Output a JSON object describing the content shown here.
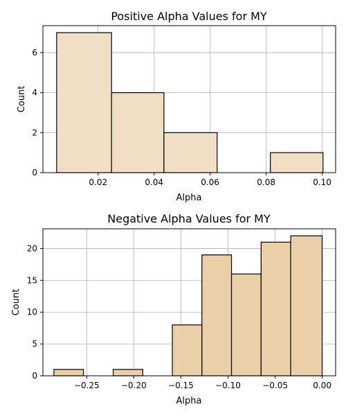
{
  "chart_data": [
    {
      "type": "bar",
      "title": "Positive Alpha Values for MY",
      "xlabel": "Alpha",
      "ylabel": "Count",
      "xlim": [
        0.0003,
        0.1048
      ],
      "ylim": [
        0,
        7.35
      ],
      "xticks": [
        0.02,
        0.04,
        0.06,
        0.08,
        0.1
      ],
      "xtick_labels": [
        "0.02",
        "0.04",
        "0.06",
        "0.08",
        "0.10"
      ],
      "yticks": [
        0,
        2,
        4,
        6
      ],
      "ytick_labels": [
        "0",
        "2",
        "4",
        "6"
      ],
      "grid": true,
      "bar_color": "#f0dfc4",
      "bins": [
        {
          "x0": 0.0052,
          "x1": 0.0248,
          "count": 7
        },
        {
          "x0": 0.0248,
          "x1": 0.0435,
          "count": 4
        },
        {
          "x0": 0.0435,
          "x1": 0.0625,
          "count": 2
        },
        {
          "x0": 0.0625,
          "x1": 0.0815,
          "count": 0
        },
        {
          "x0": 0.0815,
          "x1": 0.1003,
          "count": 1
        }
      ]
    },
    {
      "type": "bar",
      "title": "Negative Alpha Values for MY",
      "xlabel": "Alpha",
      "ylabel": "Count",
      "xlim": [
        -0.2965,
        0.0142
      ],
      "ylim": [
        0,
        23.1
      ],
      "xticks": [
        -0.25,
        -0.2,
        -0.15,
        -0.1,
        -0.05,
        0.0
      ],
      "xtick_labels": [
        "−0.25",
        "−0.20",
        "−0.15",
        "−0.10",
        "−0.05",
        "0.00"
      ],
      "yticks": [
        0,
        5,
        10,
        15,
        20
      ],
      "ytick_labels": [
        "0",
        "5",
        "10",
        "15",
        "20"
      ],
      "grid": true,
      "bar_color": "#ebcfa8",
      "bins": [
        {
          "x0": -0.2848,
          "x1": -0.2535,
          "count": 1
        },
        {
          "x0": -0.2535,
          "x1": -0.2219,
          "count": 0
        },
        {
          "x0": -0.2219,
          "x1": -0.1905,
          "count": 1
        },
        {
          "x0": -0.1905,
          "x1": -0.1591,
          "count": 0
        },
        {
          "x0": -0.1591,
          "x1": -0.1277,
          "count": 8
        },
        {
          "x0": -0.1277,
          "x1": -0.0963,
          "count": 19
        },
        {
          "x0": -0.0963,
          "x1": -0.0649,
          "count": 16
        },
        {
          "x0": -0.0649,
          "x1": -0.0335,
          "count": 21
        },
        {
          "x0": -0.0335,
          "x1": -0.0001,
          "count": 22
        }
      ]
    }
  ]
}
